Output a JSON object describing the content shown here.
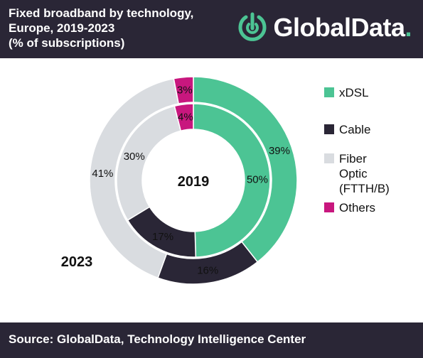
{
  "header": {
    "title": "Fixed broadband by technology,\nEurope, 2019-2023\n(% of subscriptions)",
    "logo_text": "GlobalData",
    "logo_dot": ".",
    "background": "#2a2636"
  },
  "chart_data": {
    "type": "pie",
    "subtype": "nested-donut",
    "title": "Fixed broadband by technology, Europe, 2019-2023 (% of subscriptions)",
    "categories": [
      "xDSL",
      "Cable",
      "Fiber Optic (FTTH/B)",
      "Others"
    ],
    "colors": [
      "#4cc494",
      "#2a2636",
      "#d9dce0",
      "#c8177e"
    ],
    "series": [
      {
        "name": "2019",
        "ring": "inner",
        "values": [
          50,
          17,
          30,
          4
        ],
        "labels": [
          "50%",
          "17%",
          "30%",
          "4%"
        ]
      },
      {
        "name": "2023",
        "ring": "outer",
        "values": [
          39,
          16,
          41,
          3
        ],
        "labels": [
          "39%",
          "16%",
          "41%",
          "3%"
        ]
      }
    ],
    "legend_position": "right"
  },
  "legend": {
    "items": [
      {
        "label": "xDSL",
        "color": "#4cc494"
      },
      {
        "label": "Cable",
        "color": "#2a2636"
      },
      {
        "label": "Fiber Optic\n(FTTH/B)",
        "color": "#d9dce0"
      },
      {
        "label": "Others",
        "color": "#c8177e"
      }
    ]
  },
  "footer": {
    "source": "Source:  GlobalData, Technology Intelligence Center"
  }
}
